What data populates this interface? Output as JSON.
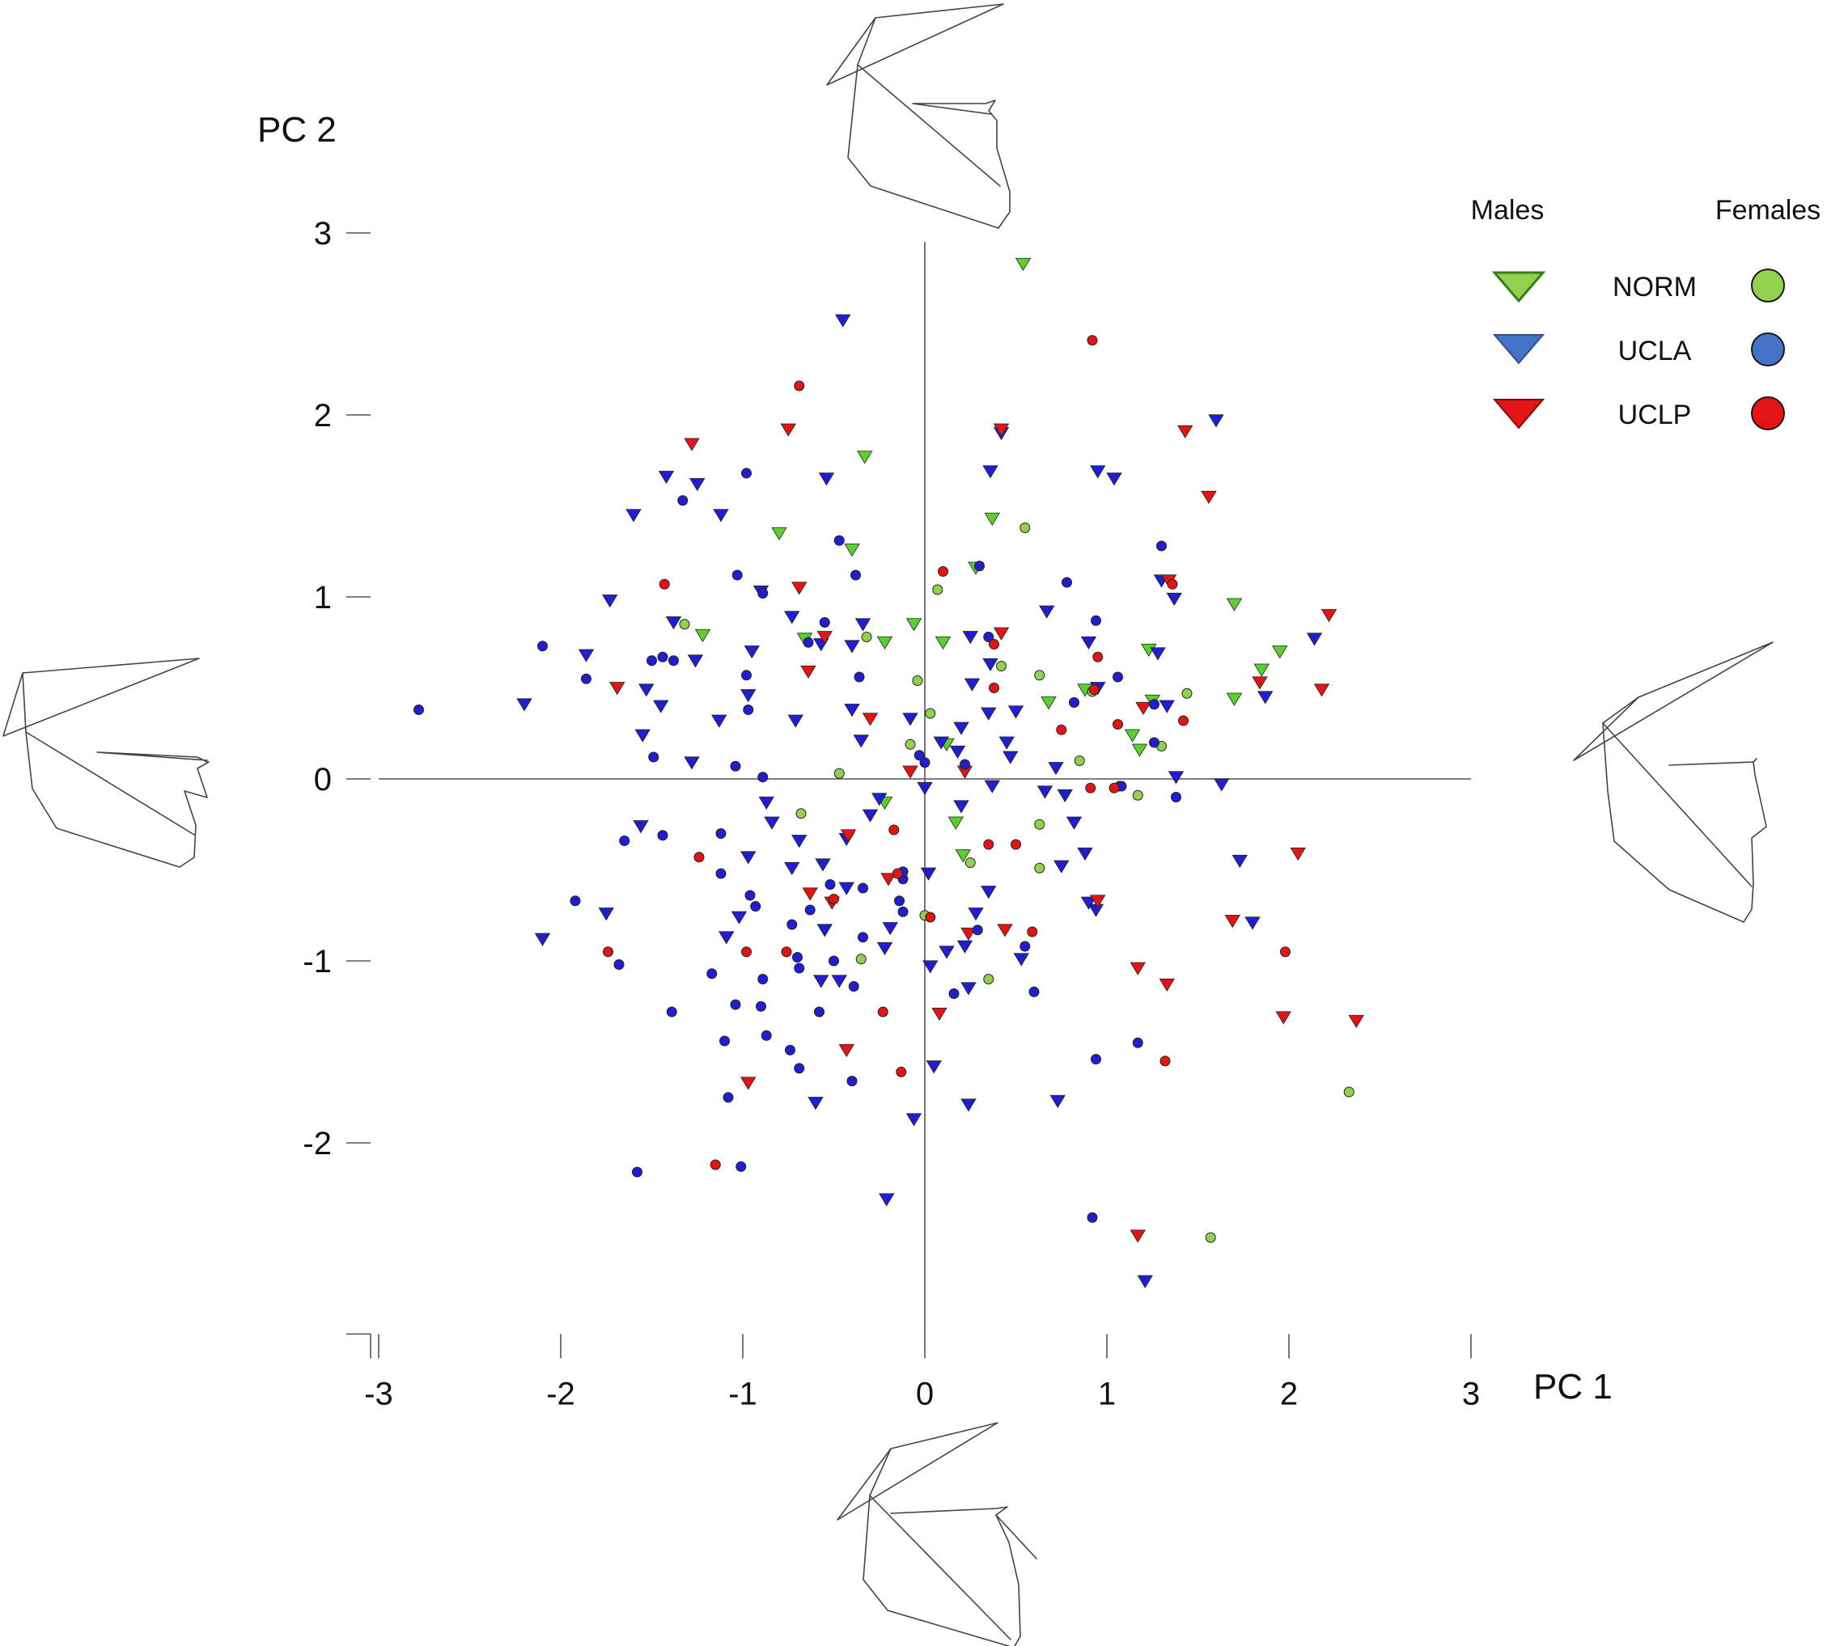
{
  "chart_data": {
    "type": "scatter",
    "xlabel": "PC 1",
    "ylabel": "PC 2",
    "xlim": [
      -3,
      3
    ],
    "ylim": [
      -3,
      3
    ],
    "x_ticks": [
      -3,
      -2,
      -1,
      0,
      1,
      2,
      3
    ],
    "y_ticks": [
      -2,
      -1,
      0,
      1,
      2,
      3
    ],
    "x_tick_labels": [
      "-3",
      "-2",
      "-1",
      "0",
      "1",
      "2",
      "3"
    ],
    "y_tick_labels": [
      "-2",
      "-1",
      "0",
      "1",
      "2",
      "3"
    ],
    "grid": false,
    "legend_placement": "top-right",
    "legend": {
      "males_header": "Males",
      "females_header": "Females",
      "groups": [
        "NORM",
        "UCLA",
        "UCLP"
      ]
    },
    "colors": {
      "NORM": "#92d050",
      "UCLA": "#1f1fd0",
      "UCLP": "#e31414",
      "UCLA_legend": "#4472c4"
    },
    "series": [
      {
        "name": "NORM",
        "sex": "Males",
        "marker": "triangle-down",
        "color": "#5ad02c",
        "points": [
          [
            0.54,
            2.83
          ],
          [
            -0.33,
            1.77
          ],
          [
            -0.8,
            1.35
          ],
          [
            -0.4,
            1.26
          ],
          [
            0.37,
            1.43
          ],
          [
            0.28,
            1.16
          ],
          [
            -1.22,
            0.79
          ],
          [
            -0.66,
            0.77
          ],
          [
            -0.22,
            0.75
          ],
          [
            -0.06,
            0.85
          ],
          [
            0.1,
            0.75
          ],
          [
            0.68,
            0.42
          ],
          [
            0.88,
            0.49
          ],
          [
            1.23,
            0.71
          ],
          [
            1.7,
            0.96
          ],
          [
            1.85,
            0.6
          ],
          [
            1.95,
            0.7
          ],
          [
            1.7,
            0.44
          ],
          [
            1.25,
            0.43
          ],
          [
            1.14,
            0.24
          ],
          [
            1.18,
            0.16
          ],
          [
            0.12,
            0.19
          ],
          [
            -0.22,
            -0.13
          ],
          [
            0.17,
            -0.24
          ],
          [
            0.21,
            -0.42
          ]
        ]
      },
      {
        "name": "UCLA",
        "sex": "Males",
        "marker": "triangle-down",
        "color": "#1f1fd0",
        "points": [
          [
            -0.45,
            2.52
          ],
          [
            -0.54,
            1.65
          ],
          [
            -1.42,
            1.66
          ],
          [
            -1.25,
            1.62
          ],
          [
            -1.6,
            1.45
          ],
          [
            -1.12,
            1.45
          ],
          [
            0.36,
            1.69
          ],
          [
            0.42,
            1.9
          ],
          [
            0.95,
            1.69
          ],
          [
            1.04,
            1.65
          ],
          [
            1.6,
            1.97
          ],
          [
            -1.73,
            0.98
          ],
          [
            -1.38,
            0.86
          ],
          [
            -0.9,
            1.03
          ],
          [
            -0.4,
            0.73
          ],
          [
            -0.95,
            0.7
          ],
          [
            -0.57,
            0.74
          ],
          [
            -0.73,
            0.89
          ],
          [
            -0.34,
            0.85
          ],
          [
            -1.26,
            0.65
          ],
          [
            -1.86,
            0.68
          ],
          [
            -2.2,
            0.41
          ],
          [
            -1.45,
            0.4
          ],
          [
            -1.13,
            0.32
          ],
          [
            -0.97,
            0.46
          ],
          [
            -1.55,
            0.24
          ],
          [
            -1.28,
            0.09
          ],
          [
            -1.53,
            0.49
          ],
          [
            -0.71,
            0.32
          ],
          [
            -0.4,
            0.38
          ],
          [
            -0.35,
            0.21
          ],
          [
            -0.08,
            0.33
          ],
          [
            0.2,
            0.28
          ],
          [
            0.35,
            0.36
          ],
          [
            0.5,
            0.37
          ],
          [
            0.18,
            0.15
          ],
          [
            0.26,
            0.52
          ],
          [
            0.09,
            0.2
          ],
          [
            0.36,
            0.63
          ],
          [
            0.67,
            0.92
          ],
          [
            0.9,
            0.75
          ],
          [
            0.95,
            0.5
          ],
          [
            1.28,
            0.69
          ],
          [
            1.37,
            0.99
          ],
          [
            1.3,
            1.09
          ],
          [
            1.33,
            0.4
          ],
          [
            1.38,
            0.01
          ],
          [
            1.63,
            -0.03
          ],
          [
            1.87,
            0.45
          ],
          [
            2.14,
            0.77
          ],
          [
            0.25,
            0.78
          ],
          [
            0.45,
            0.2
          ],
          [
            0.47,
            0.12
          ],
          [
            0.72,
            0.06
          ],
          [
            -0.25,
            -0.11
          ],
          [
            -0.3,
            -0.2
          ],
          [
            -0.43,
            -0.33
          ],
          [
            -0.56,
            -0.47
          ],
          [
            -0.43,
            -0.6
          ],
          [
            -0.69,
            -0.34
          ],
          [
            -0.87,
            -0.13
          ],
          [
            -0.84,
            -0.24
          ],
          [
            -0.73,
            -0.49
          ],
          [
            -0.97,
            -0.43
          ],
          [
            -1.09,
            -0.87
          ],
          [
            -1.56,
            -0.26
          ],
          [
            -1.75,
            -0.74
          ],
          [
            -2.1,
            -0.88
          ],
          [
            -1.02,
            -0.76
          ],
          [
            -0.55,
            -0.83
          ],
          [
            -0.57,
            -1.11
          ],
          [
            -0.47,
            -1.11
          ],
          [
            -0.19,
            -0.82
          ],
          [
            -0.22,
            -0.93
          ],
          [
            -0.6,
            -1.78
          ],
          [
            -0.06,
            -1.87
          ],
          [
            -0.21,
            -2.31
          ],
          [
            0.24,
            -1.79
          ],
          [
            0.05,
            -1.58
          ],
          [
            0.03,
            -1.03
          ],
          [
            0.12,
            -0.95
          ],
          [
            0.22,
            -0.92
          ],
          [
            0.28,
            -0.74
          ],
          [
            0.35,
            -0.62
          ],
          [
            0.2,
            -0.15
          ],
          [
            0.37,
            -0.04
          ],
          [
            0.66,
            -0.07
          ],
          [
            0.75,
            -0.48
          ],
          [
            0.77,
            -0.09
          ],
          [
            0.88,
            -0.41
          ],
          [
            0.82,
            -0.24
          ],
          [
            0.94,
            -0.72
          ],
          [
            0.9,
            -0.68
          ],
          [
            0.02,
            -0.52
          ],
          [
            0.0,
            -0.05
          ],
          [
            0.24,
            -1.15
          ],
          [
            0.53,
            -0.99
          ],
          [
            0.73,
            -1.77
          ],
          [
            1.21,
            -2.76
          ],
          [
            1.73,
            -0.45
          ],
          [
            1.8,
            -0.79
          ]
        ]
      },
      {
        "name": "UCLP",
        "sex": "Males",
        "marker": "triangle-down",
        "color": "#e31414",
        "points": [
          [
            -1.28,
            1.84
          ],
          [
            -0.75,
            1.92
          ],
          [
            0.42,
            1.92
          ],
          [
            1.43,
            1.91
          ],
          [
            1.56,
            1.55
          ],
          [
            2.22,
            0.9
          ],
          [
            1.34,
            1.09
          ],
          [
            -0.69,
            1.05
          ],
          [
            -0.55,
            0.78
          ],
          [
            0.42,
            0.8
          ],
          [
            -0.64,
            0.59
          ],
          [
            -1.69,
            0.5
          ],
          [
            -0.3,
            0.33
          ],
          [
            1.84,
            0.53
          ],
          [
            2.18,
            0.49
          ],
          [
            1.2,
            0.39
          ],
          [
            -0.08,
            0.04
          ],
          [
            0.22,
            0.04
          ],
          [
            -0.42,
            -0.31
          ],
          [
            -0.63,
            -0.63
          ],
          [
            -0.51,
            -0.68
          ],
          [
            -0.2,
            -0.55
          ],
          [
            0.44,
            -0.83
          ],
          [
            0.24,
            -0.85
          ],
          [
            0.95,
            -0.67
          ],
          [
            1.69,
            -0.78
          ],
          [
            2.05,
            -0.41
          ],
          [
            1.17,
            -1.04
          ],
          [
            1.33,
            -1.13
          ],
          [
            1.97,
            -1.31
          ],
          [
            2.37,
            -1.33
          ],
          [
            0.08,
            -1.29
          ],
          [
            -0.43,
            -1.49
          ],
          [
            -0.97,
            -1.67
          ],
          [
            1.17,
            -2.51
          ]
        ]
      },
      {
        "name": "NORM",
        "sex": "Females",
        "marker": "circle",
        "color": "#92d050",
        "points": [
          [
            0.55,
            1.38
          ],
          [
            0.07,
            1.04
          ],
          [
            -1.32,
            0.85
          ],
          [
            -0.32,
            0.78
          ],
          [
            -0.04,
            0.54
          ],
          [
            0.42,
            0.62
          ],
          [
            0.63,
            0.57
          ],
          [
            0.92,
            0.48
          ],
          [
            1.44,
            0.47
          ],
          [
            1.3,
            0.18
          ],
          [
            0.03,
            0.36
          ],
          [
            -0.08,
            0.19
          ],
          [
            -0.47,
            0.03
          ],
          [
            0.85,
            0.1
          ],
          [
            1.17,
            -0.09
          ],
          [
            -0.68,
            -0.19
          ],
          [
            0.63,
            -0.25
          ],
          [
            0.63,
            -0.49
          ],
          [
            0.25,
            -0.46
          ],
          [
            0.35,
            -1.1
          ],
          [
            0.0,
            -0.75
          ],
          [
            -0.35,
            -0.99
          ],
          [
            2.33,
            -1.72
          ],
          [
            1.57,
            -2.52
          ]
        ]
      },
      {
        "name": "UCLA",
        "sex": "Females",
        "marker": "circle",
        "color": "#1f1fd0",
        "points": [
          [
            -0.98,
            1.68
          ],
          [
            -1.33,
            1.53
          ],
          [
            -0.47,
            1.31
          ],
          [
            0.3,
            1.17
          ],
          [
            1.3,
            1.28
          ],
          [
            -1.03,
            1.12
          ],
          [
            0.78,
            1.08
          ],
          [
            -0.38,
            1.12
          ],
          [
            -0.89,
            1.02
          ],
          [
            -0.55,
            0.86
          ],
          [
            -0.64,
            0.75
          ],
          [
            0.35,
            0.78
          ],
          [
            -2.1,
            0.73
          ],
          [
            -1.86,
            0.55
          ],
          [
            -1.5,
            0.65
          ],
          [
            -1.44,
            0.67
          ],
          [
            -0.98,
            0.57
          ],
          [
            -0.36,
            0.56
          ],
          [
            -1.38,
            0.65
          ],
          [
            -0.97,
            0.38
          ],
          [
            1.06,
            0.56
          ],
          [
            1.26,
            0.41
          ],
          [
            0.82,
            0.42
          ],
          [
            0.94,
            0.87
          ],
          [
            -2.78,
            0.38
          ],
          [
            -1.49,
            0.12
          ],
          [
            -1.04,
            0.07
          ],
          [
            -0.89,
            0.01
          ],
          [
            -0.03,
            0.13
          ],
          [
            -0.0,
            0.09
          ],
          [
            0.22,
            0.08
          ],
          [
            1.07,
            -0.04
          ],
          [
            1.26,
            0.2
          ],
          [
            1.08,
            -0.04
          ],
          [
            1.38,
            -0.1
          ],
          [
            -1.65,
            -0.34
          ],
          [
            -1.44,
            -0.31
          ],
          [
            -1.12,
            -0.3
          ],
          [
            -1.12,
            -0.52
          ],
          [
            -0.96,
            -0.64
          ],
          [
            -0.73,
            -0.8
          ],
          [
            -0.93,
            -0.7
          ],
          [
            -0.52,
            -0.58
          ],
          [
            -0.63,
            -0.72
          ],
          [
            -0.34,
            -0.6
          ],
          [
            -0.34,
            -0.87
          ],
          [
            -0.5,
            -1.0
          ],
          [
            -0.7,
            -0.98
          ],
          [
            -0.89,
            -1.1
          ],
          [
            -0.69,
            -1.04
          ],
          [
            -0.9,
            -1.25
          ],
          [
            -1.04,
            -1.24
          ],
          [
            -1.17,
            -1.07
          ],
          [
            -1.1,
            -1.44
          ],
          [
            -0.87,
            -1.41
          ],
          [
            -0.74,
            -1.49
          ],
          [
            -0.69,
            -1.59
          ],
          [
            -1.08,
            -1.75
          ],
          [
            -1.39,
            -1.28
          ],
          [
            -1.92,
            -0.67
          ],
          [
            -1.68,
            -1.02
          ],
          [
            -0.58,
            -1.28
          ],
          [
            -0.39,
            -1.14
          ],
          [
            -0.4,
            -1.66
          ],
          [
            -0.12,
            -0.55
          ],
          [
            -0.14,
            -0.67
          ],
          [
            -0.12,
            -0.73
          ],
          [
            -0.12,
            -0.51
          ],
          [
            0.16,
            -1.18
          ],
          [
            0.29,
            -0.83
          ],
          [
            0.55,
            -0.92
          ],
          [
            0.6,
            -1.17
          ],
          [
            0.92,
            -2.41
          ],
          [
            0.94,
            -1.54
          ],
          [
            1.17,
            -1.45
          ],
          [
            -1.58,
            -2.16
          ],
          [
            -1.01,
            -2.13
          ]
        ]
      },
      {
        "name": "UCLP",
        "sex": "Females",
        "marker": "circle",
        "color": "#e31414",
        "points": [
          [
            -0.69,
            2.16
          ],
          [
            0.92,
            2.41
          ],
          [
            -1.43,
            1.07
          ],
          [
            0.1,
            1.14
          ],
          [
            1.36,
            1.07
          ],
          [
            0.38,
            0.5
          ],
          [
            0.93,
            0.49
          ],
          [
            0.38,
            0.74
          ],
          [
            0.95,
            0.67
          ],
          [
            1.42,
            0.32
          ],
          [
            0.75,
            0.27
          ],
          [
            1.06,
            0.3
          ],
          [
            0.91,
            -0.05
          ],
          [
            1.04,
            -0.05
          ],
          [
            -1.24,
            -0.43
          ],
          [
            -0.17,
            -0.28
          ],
          [
            0.35,
            -0.36
          ],
          [
            0.5,
            -0.36
          ],
          [
            -0.5,
            -0.66
          ],
          [
            -0.15,
            -0.52
          ],
          [
            0.03,
            -0.76
          ],
          [
            0.59,
            -0.84
          ],
          [
            -1.74,
            -0.95
          ],
          [
            -0.76,
            -0.95
          ],
          [
            -0.98,
            -0.95
          ],
          [
            1.98,
            -0.95
          ],
          [
            -0.23,
            -1.28
          ],
          [
            -0.13,
            -1.61
          ],
          [
            -1.15,
            -2.12
          ],
          [
            1.32,
            -1.55
          ]
        ]
      }
    ]
  }
}
